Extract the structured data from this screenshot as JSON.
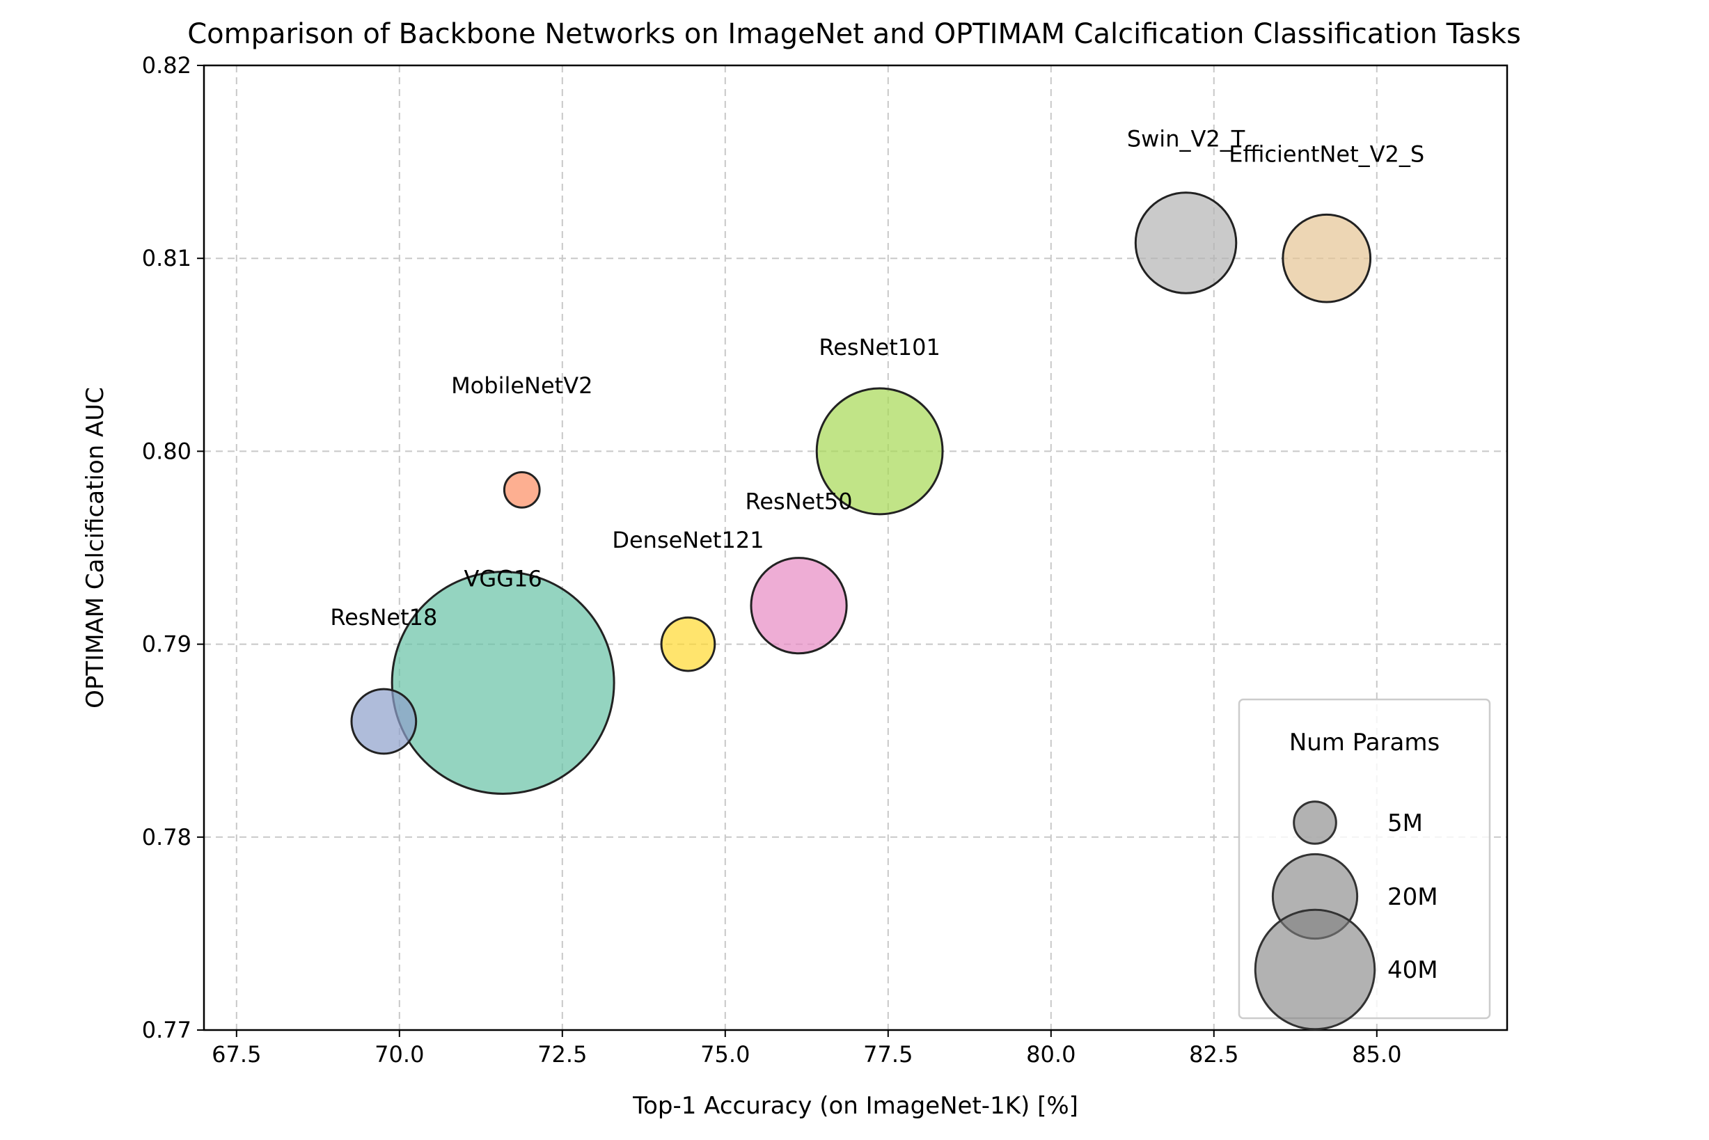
{
  "chart_data": {
    "type": "scatter",
    "title": "Comparison of Backbone Networks on ImageNet and OPTIMAM Calcification Classification Tasks",
    "xlabel": "Top-1 Accuracy (on ImageNet-1K) [%]",
    "ylabel": "OPTIMAM Calcification AUC",
    "xlim": [
      67,
      87
    ],
    "ylim": [
      0.77,
      0.82
    ],
    "xticks": [
      "67.5",
      "70.0",
      "72.5",
      "75.0",
      "77.5",
      "80.0",
      "82.5",
      "85.0"
    ],
    "xtick_values": [
      67.5,
      70.0,
      72.5,
      75.0,
      77.5,
      80.0,
      82.5,
      85.0
    ],
    "yticks": [
      "0.77",
      "0.78",
      "0.79",
      "0.80",
      "0.81",
      "0.82"
    ],
    "ytick_values": [
      0.77,
      0.78,
      0.79,
      0.8,
      0.81,
      0.82
    ],
    "grid": true,
    "size_encoding": "Num Params",
    "points": [
      {
        "label": "ResNet18",
        "x": 69.76,
        "y": 0.786,
        "params_m": 11.7,
        "color": "#8da0cb"
      },
      {
        "label": "VGG16",
        "x": 71.59,
        "y": 0.788,
        "params_m": 138.4,
        "color": "#66c2a5"
      },
      {
        "label": "MobileNetV2",
        "x": 71.88,
        "y": 0.798,
        "params_m": 3.5,
        "color": "#fc8d62"
      },
      {
        "label": "DenseNet121",
        "x": 74.43,
        "y": 0.79,
        "params_m": 8.0,
        "color": "#ffd92f"
      },
      {
        "label": "ResNet50",
        "x": 76.13,
        "y": 0.792,
        "params_m": 25.6,
        "color": "#e78ac3"
      },
      {
        "label": "ResNet101",
        "x": 77.37,
        "y": 0.8,
        "params_m": 44.5,
        "color": "#a6d854"
      },
      {
        "label": "Swin_V2_T",
        "x": 82.07,
        "y": 0.8108,
        "params_m": 28.4,
        "color": "#b3b3b3"
      },
      {
        "label": "EfficientNet_V2_S",
        "x": 84.23,
        "y": 0.81,
        "params_m": 21.5,
        "color": "#e5c494"
      }
    ],
    "legend": {
      "title": "Num Params",
      "placement": "lower-right",
      "entries": [
        {
          "label": "5M",
          "params_m": 5
        },
        {
          "label": "20M",
          "params_m": 20
        },
        {
          "label": "40M",
          "params_m": 40
        }
      ]
    }
  }
}
